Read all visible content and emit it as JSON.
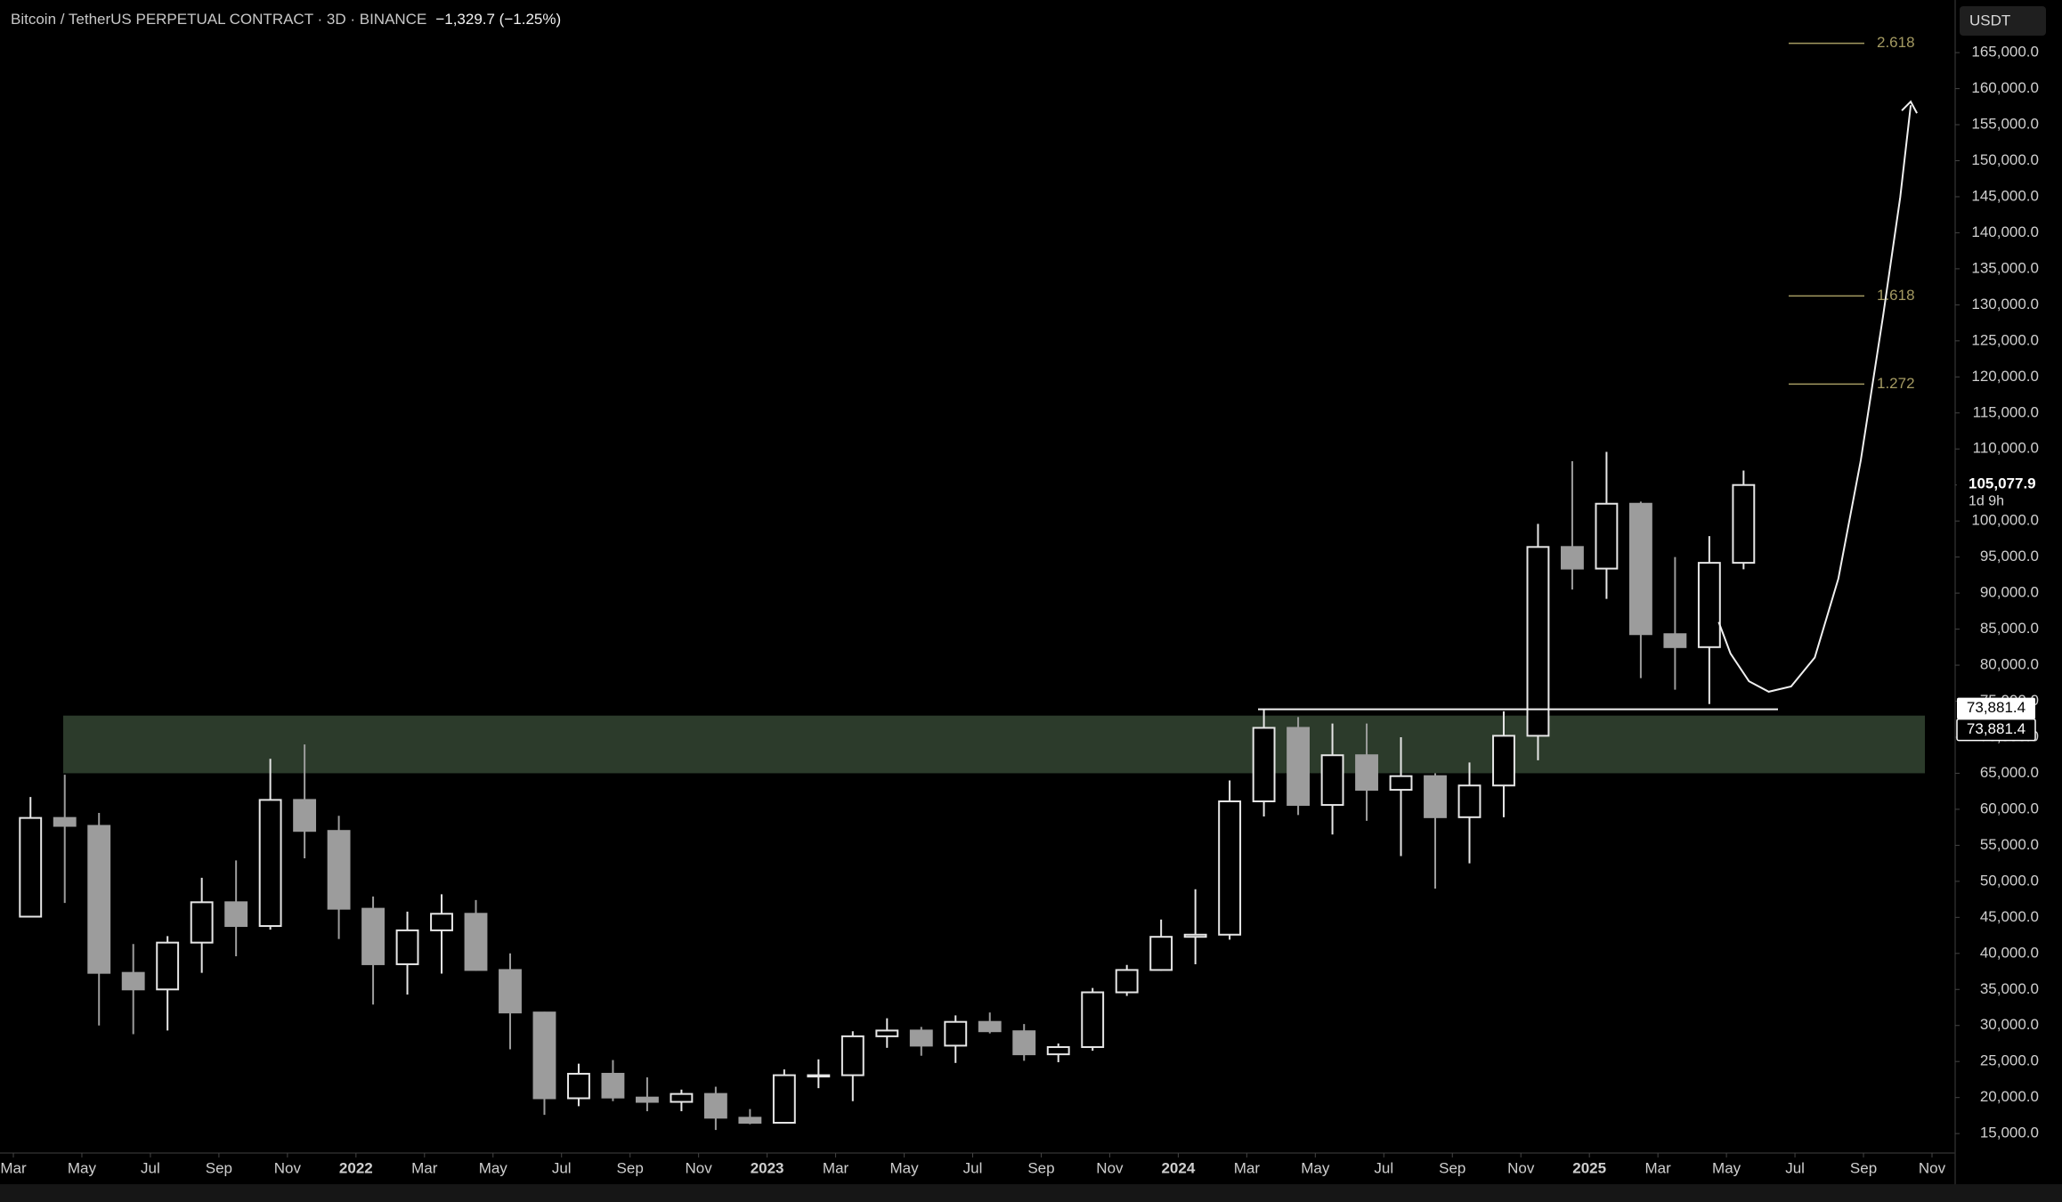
{
  "header": {
    "symbol": "Bitcoin / TetherUS PERPETUAL CONTRACT · 3D · BINANCE",
    "change": "−1,329.7 (−1.25%)",
    "currency": "USDT"
  },
  "chart_data": {
    "type": "candlestick",
    "x": [
      "2021-03",
      "2021-04",
      "2021-05",
      "2021-06",
      "2021-07",
      "2021-08",
      "2021-09",
      "2021-10",
      "2021-11",
      "2021-12",
      "2022-01",
      "2022-02",
      "2022-03",
      "2022-04",
      "2022-05",
      "2022-06",
      "2022-07",
      "2022-08",
      "2022-09",
      "2022-10",
      "2022-11",
      "2022-12",
      "2023-01",
      "2023-02",
      "2023-03",
      "2023-04",
      "2023-05",
      "2023-06",
      "2023-07",
      "2023-08",
      "2023-09",
      "2023-10",
      "2023-11",
      "2023-12",
      "2024-01",
      "2024-02",
      "2024-03",
      "2024-04",
      "2024-05",
      "2024-06",
      "2024-07",
      "2024-08",
      "2024-09",
      "2024-10",
      "2024-11",
      "2024-12",
      "2025-01",
      "2025-02",
      "2025-03",
      "2025-04",
      "2025-05"
    ],
    "open": [
      45100,
      58800,
      57700,
      37300,
      35000,
      41500,
      47100,
      43800,
      61300,
      57000,
      46200,
      38500,
      43200,
      45500,
      37700,
      31800,
      19900,
      23300,
      20000,
      19400,
      20500,
      17200,
      16500,
      23100,
      23100,
      28500,
      29300,
      27200,
      30500,
      29200,
      26000,
      27000,
      34600,
      37700,
      42300,
      42600,
      61100,
      71300,
      60600,
      67500,
      62700,
      64600,
      58900,
      63300,
      70200,
      96400,
      93400,
      102400,
      84300,
      82500,
      94200
    ],
    "high": [
      61700,
      64800,
      59500,
      41300,
      42400,
      50500,
      52900,
      67000,
      69000,
      59100,
      47900,
      45800,
      48200,
      47400,
      40000,
      31900,
      24700,
      25200,
      22800,
      21100,
      21500,
      18400,
      23900,
      25300,
      29200,
      31000,
      29800,
      31400,
      31800,
      30200,
      27500,
      35200,
      38400,
      44700,
      48900,
      64000,
      73800,
      72800,
      71900,
      71900,
      70000,
      65000,
      66500,
      73600,
      99600,
      108300,
      109600,
      102700,
      95000,
      97900,
      107000
    ],
    "low": [
      45000,
      47000,
      30000,
      28800,
      29300,
      37300,
      39600,
      43300,
      53200,
      42000,
      32900,
      34300,
      37200,
      37600,
      26700,
      17600,
      18800,
      19500,
      18100,
      18100,
      15500,
      16300,
      16500,
      21300,
      19500,
      26900,
      25800,
      24800,
      28900,
      25100,
      24900,
      26500,
      34100,
      37600,
      38500,
      41900,
      59000,
      59200,
      56500,
      58400,
      53500,
      49000,
      52500,
      58900,
      66800,
      90500,
      89200,
      78200,
      76600,
      74600,
      93300
    ],
    "close": [
      58800,
      57700,
      37300,
      35000,
      41500,
      47100,
      43800,
      61300,
      57000,
      46200,
      38500,
      43200,
      45500,
      37700,
      31800,
      19900,
      23300,
      20000,
      19400,
      20500,
      17200,
      16500,
      23100,
      23100,
      28500,
      29300,
      27200,
      30500,
      29200,
      26000,
      27000,
      34600,
      37700,
      42300,
      42600,
      61100,
      71300,
      60600,
      67500,
      62700,
      64600,
      58900,
      63300,
      70200,
      96400,
      93400,
      102400,
      84300,
      82500,
      94200,
      105000
    ],
    "up_color": "#e6e6e6",
    "down_color": "#9c9c9c",
    "xlim": [
      "2021-03",
      "2025-11"
    ],
    "xticks": [
      {
        "value": "2021-03",
        "label": "Mar"
      },
      {
        "value": "2021-05",
        "label": "May"
      },
      {
        "value": "2021-07",
        "label": "Jul"
      },
      {
        "value": "2021-09",
        "label": "Sep"
      },
      {
        "value": "2021-11",
        "label": "Nov"
      },
      {
        "value": "2022-01",
        "label": "2022"
      },
      {
        "value": "2022-03",
        "label": "Mar"
      },
      {
        "value": "2022-05",
        "label": "May"
      },
      {
        "value": "2022-07",
        "label": "Jul"
      },
      {
        "value": "2022-09",
        "label": "Sep"
      },
      {
        "value": "2022-11",
        "label": "Nov"
      },
      {
        "value": "2023-01",
        "label": "2023"
      },
      {
        "value": "2023-03",
        "label": "Mar"
      },
      {
        "value": "2023-05",
        "label": "May"
      },
      {
        "value": "2023-07",
        "label": "Jul"
      },
      {
        "value": "2023-09",
        "label": "Sep"
      },
      {
        "value": "2023-11",
        "label": "Nov"
      },
      {
        "value": "2024-01",
        "label": "2024"
      },
      {
        "value": "2024-03",
        "label": "Mar"
      },
      {
        "value": "2024-05",
        "label": "May"
      },
      {
        "value": "2024-07",
        "label": "Jul"
      },
      {
        "value": "2024-09",
        "label": "Sep"
      },
      {
        "value": "2024-11",
        "label": "Nov"
      },
      {
        "value": "2025-01",
        "label": "2025"
      },
      {
        "value": "2025-03",
        "label": "Mar"
      },
      {
        "value": "2025-05",
        "label": "May"
      },
      {
        "value": "2025-07",
        "label": "Jul"
      },
      {
        "value": "2025-09",
        "label": "Sep"
      },
      {
        "value": "2025-11",
        "label": "Nov"
      }
    ],
    "ylim": [
      12300,
      172300
    ],
    "yticks": [
      {
        "value": 15000,
        "label": "15,000.0"
      },
      {
        "value": 20000,
        "label": "20,000.0"
      },
      {
        "value": 25000,
        "label": "25,000.0"
      },
      {
        "value": 30000,
        "label": "30,000.0"
      },
      {
        "value": 35000,
        "label": "35,000.0"
      },
      {
        "value": 40000,
        "label": "40,000.0"
      },
      {
        "value": 45000,
        "label": "45,000.0"
      },
      {
        "value": 50000,
        "label": "50,000.0"
      },
      {
        "value": 55000,
        "label": "55,000.0"
      },
      {
        "value": 60000,
        "label": "60,000.0"
      },
      {
        "value": 65000,
        "label": "65,000.0"
      },
      {
        "value": 70000,
        "label": "70,000.0"
      },
      {
        "value": 75000,
        "label": "75,000.0"
      },
      {
        "value": 80000,
        "label": "80,000.0"
      },
      {
        "value": 85000,
        "label": "85,000.0"
      },
      {
        "value": 90000,
        "label": "90,000.0"
      },
      {
        "value": 95000,
        "label": "95,000.0"
      },
      {
        "value": 100000,
        "label": "100,000.0"
      },
      {
        "value": 105000,
        "label": "105,000.0"
      },
      {
        "value": 110000,
        "label": "110,000.0"
      },
      {
        "value": 115000,
        "label": "115,000.0"
      },
      {
        "value": 120000,
        "label": "120,000.0"
      },
      {
        "value": 125000,
        "label": "125,000.0"
      },
      {
        "value": 130000,
        "label": "130,000.0"
      },
      {
        "value": 135000,
        "label": "135,000.0"
      },
      {
        "value": 140000,
        "label": "140,000.0"
      },
      {
        "value": 145000,
        "label": "145,000.0"
      },
      {
        "value": 150000,
        "label": "150,000.0"
      },
      {
        "value": 155000,
        "label": "155,000.0"
      },
      {
        "value": 160000,
        "label": "160,000.0"
      },
      {
        "value": 165000,
        "label": "165,000.0"
      }
    ],
    "grid": false,
    "zone": [
      65000,
      73000
    ],
    "zone_color": "#2c3b2b",
    "level": {
      "value": 73881.4,
      "label": "73,881.4"
    },
    "last_price": {
      "value": 105077.9,
      "label": "105,077.9"
    },
    "countdown": "1d 9h",
    "fib_color": "#a49a62",
    "fib_levels": [
      {
        "value": 166300,
        "label": "2.618"
      },
      {
        "value": 131240,
        "label": "1.618"
      },
      {
        "value": 119000,
        "label": "1.272"
      }
    ]
  }
}
